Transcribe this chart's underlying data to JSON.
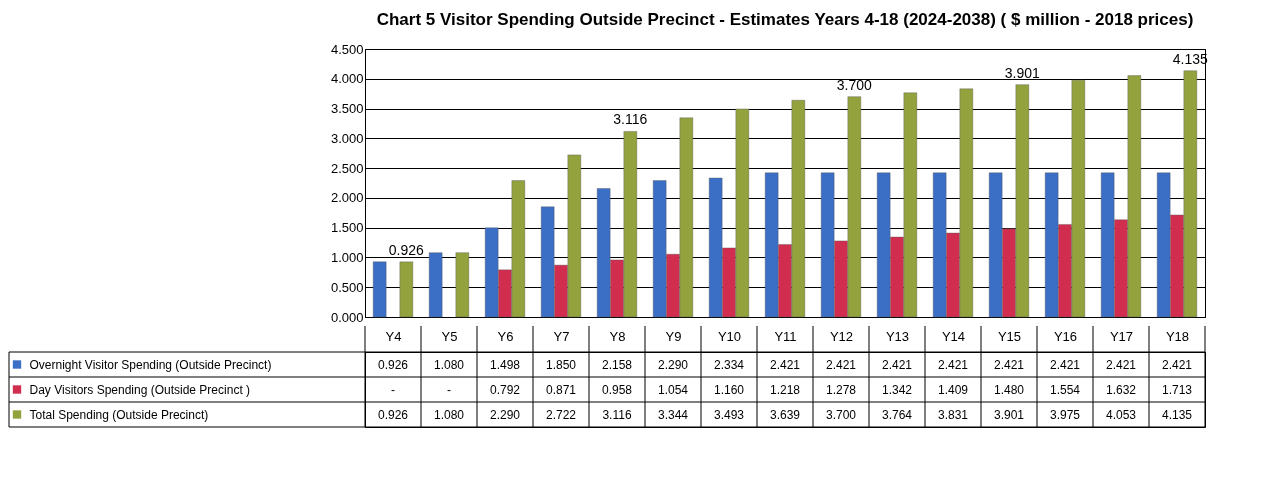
{
  "chart_data": {
    "type": "bar",
    "title": "Chart 5 Visitor Spending  Outside Precinct - Estimates  Years 4-18 (2024-2038) ( $ million - 2018 prices)",
    "categories": [
      "Y4",
      "Y5",
      "Y6",
      "Y7",
      "Y8",
      "Y9",
      "Y10",
      "Y11",
      "Y12",
      "Y13",
      "Y14",
      "Y15",
      "Y16",
      "Y17",
      "Y18"
    ],
    "series": [
      {
        "name": "Overnight Visitor Spending (Outside  Precinct)",
        "color": "#3b6fc6",
        "values": [
          0.926,
          1.08,
          1.498,
          1.85,
          2.158,
          2.29,
          2.334,
          2.421,
          2.421,
          2.421,
          2.421,
          2.421,
          2.421,
          2.421,
          2.421
        ],
        "value_labels": [
          "0.926",
          "1.080",
          "1.498",
          "1.850",
          "2.158",
          "2.290",
          "2.334",
          "2.421",
          "2.421",
          "2.421",
          "2.421",
          "2.421",
          "2.421",
          "2.421",
          "2.421"
        ]
      },
      {
        "name": "Day Visitors Spending (Outside Precinct )",
        "color": "#d12d4f",
        "values": [
          null,
          null,
          0.792,
          0.871,
          0.958,
          1.054,
          1.16,
          1.218,
          1.278,
          1.342,
          1.409,
          1.48,
          1.554,
          1.632,
          1.713
        ],
        "value_labels": [
          "-",
          "-",
          "0.792",
          "0.871",
          "0.958",
          "1.054",
          "1.160",
          "1.218",
          "1.278",
          "1.342",
          "1.409",
          "1.480",
          "1.554",
          "1.632",
          "1.713"
        ]
      },
      {
        "name": "Total Spending  (Outside Precinct)",
        "color": "#94a23e",
        "values": [
          0.926,
          1.08,
          2.29,
          2.722,
          3.116,
          3.344,
          3.493,
          3.639,
          3.7,
          3.764,
          3.831,
          3.901,
          3.975,
          4.053,
          4.135
        ],
        "value_labels": [
          "0.926",
          "1.080",
          "2.290",
          "2.722",
          "3.116",
          "3.344",
          "3.493",
          "3.639",
          "3.700",
          "3.764",
          "3.831",
          "3.901",
          "3.975",
          "4.053",
          "4.135"
        ]
      }
    ],
    "ylim": [
      0,
      4.5
    ],
    "yticks": [
      {
        "value": 0,
        "label": "0.000"
      },
      {
        "value": 0.5,
        "label": "0.500"
      },
      {
        "value": 1,
        "label": "1.000"
      },
      {
        "value": 1.5,
        "label": "1.500"
      },
      {
        "value": 2,
        "label": "2.000"
      },
      {
        "value": 2.5,
        "label": "2.500"
      },
      {
        "value": 3,
        "label": "3.000"
      },
      {
        "value": 3.5,
        "label": "3.500"
      },
      {
        "value": 4,
        "label": "4.000"
      },
      {
        "value": 4.5,
        "label": "4.500"
      }
    ],
    "grid": "y",
    "legend": "bottom",
    "annotations": [
      "0.926",
      "3.116",
      "3.700",
      "3.901",
      "4.135"
    ]
  }
}
